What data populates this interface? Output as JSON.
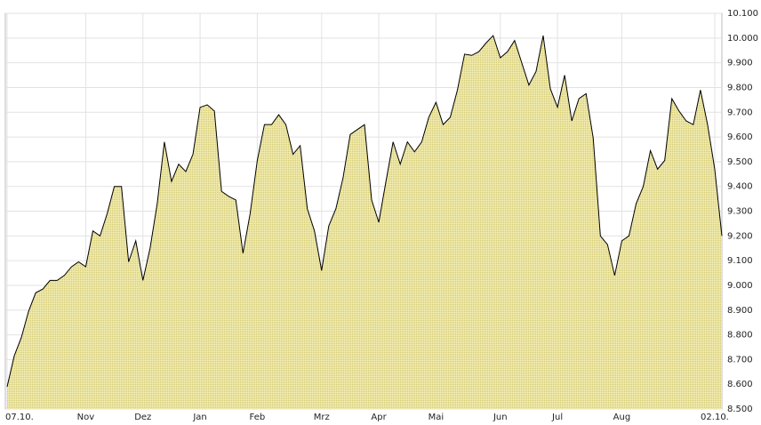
{
  "chart_data": {
    "type": "area",
    "categories": [
      "07.10.",
      null,
      null,
      null,
      null,
      null,
      null,
      null,
      null,
      null,
      null,
      "Nov",
      null,
      null,
      null,
      null,
      null,
      null,
      null,
      "Dez",
      null,
      null,
      null,
      null,
      null,
      null,
      null,
      "Jan",
      null,
      null,
      null,
      null,
      null,
      null,
      null,
      "Feb",
      null,
      null,
      null,
      null,
      null,
      null,
      null,
      null,
      "Mrz",
      null,
      null,
      null,
      null,
      null,
      null,
      null,
      "Apr",
      null,
      null,
      null,
      null,
      null,
      null,
      null,
      "Mai",
      null,
      null,
      null,
      null,
      null,
      null,
      null,
      null,
      "Jun",
      null,
      null,
      null,
      null,
      null,
      null,
      null,
      "Jul",
      null,
      null,
      null,
      null,
      null,
      null,
      null,
      null,
      "Aug",
      null,
      null,
      null,
      null,
      null,
      null,
      null,
      null,
      null,
      null,
      null,
      null,
      "02.10.",
      null
    ],
    "values": [
      8590,
      8715,
      8790,
      8895,
      8970,
      8985,
      9020,
      9020,
      9040,
      9075,
      9095,
      9075,
      9220,
      9200,
      9290,
      9400,
      9400,
      9095,
      9180,
      9020,
      9150,
      9330,
      9580,
      9420,
      9490,
      9460,
      9530,
      9720,
      9730,
      9705,
      9380,
      9360,
      9345,
      9130,
      9290,
      9505,
      9650,
      9650,
      9690,
      9650,
      9530,
      9565,
      9310,
      9220,
      9060,
      9240,
      9310,
      9435,
      9610,
      9630,
      9650,
      9345,
      9255,
      9420,
      9580,
      9490,
      9580,
      9540,
      9580,
      9680,
      9740,
      9650,
      9680,
      9790,
      9935,
      9930,
      9945,
      9980,
      10010,
      9920,
      9945,
      9990,
      9900,
      9810,
      9865,
      10010,
      9795,
      9720,
      9850,
      9665,
      9755,
      9775,
      9595,
      9200,
      9165,
      9040,
      9180,
      9200,
      9330,
      9400,
      9545,
      9470,
      9505,
      9755,
      9705,
      9665,
      9650,
      9790,
      9650,
      9470,
      9200
    ],
    "color": "#e6df96",
    "line_color": "#000000",
    "ylim": [
      8500,
      10100
    ],
    "yticks": [
      {
        "value": 8500,
        "label": "8.500"
      },
      {
        "value": 8600,
        "label": "8.600"
      },
      {
        "value": 8700,
        "label": "8.700"
      },
      {
        "value": 8800,
        "label": "8.800"
      },
      {
        "value": 8900,
        "label": "8.900"
      },
      {
        "value": 9000,
        "label": "9.000"
      },
      {
        "value": 9100,
        "label": "9.100"
      },
      {
        "value": 9200,
        "label": "9.200"
      },
      {
        "value": 9300,
        "label": "9.300"
      },
      {
        "value": 9400,
        "label": "9.400"
      },
      {
        "value": 9500,
        "label": "9.500"
      },
      {
        "value": 9600,
        "label": "9.600"
      },
      {
        "value": 9700,
        "label": "9.700"
      },
      {
        "value": 9800,
        "label": "9.800"
      },
      {
        "value": 9900,
        "label": "9.900"
      },
      {
        "value": 10000,
        "label": "10.000"
      },
      {
        "value": 10100,
        "label": "10.100"
      }
    ],
    "grid": true
  }
}
